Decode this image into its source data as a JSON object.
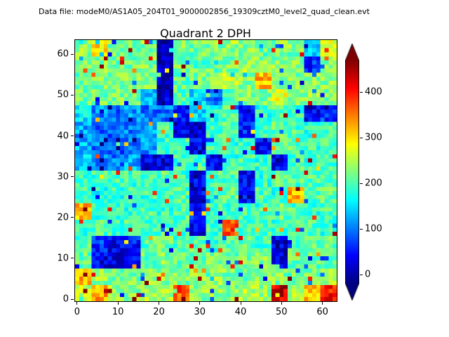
{
  "header": {
    "datafile": "Data file: modeM0/AS1A05_204T01_9000002856_19309cztM0_level2_quad_clean.evt"
  },
  "chart_data": {
    "type": "heatmap",
    "title": "Quadrant 2 DPH",
    "xlabel": "",
    "ylabel": "",
    "x_range": [
      0,
      64
    ],
    "y_range": [
      0,
      64
    ],
    "x_ticks": [
      0,
      10,
      20,
      30,
      40,
      50,
      60
    ],
    "y_ticks": [
      0,
      10,
      20,
      30,
      40,
      50,
      60
    ],
    "grid_size": [
      64,
      64
    ],
    "colormap": "jet",
    "colorbar": {
      "ticks": [
        0,
        100,
        200,
        300,
        400
      ],
      "vmin": -20,
      "vmax": 470,
      "extend": "both",
      "top_arrow_color": "#7f0000",
      "bottom_arrow_color": "#00007f"
    },
    "coarse_grid_note": "16x16 downsampled estimate of the 64x64 detector-plane histogram; rows listed top (y=63) to bottom (y=0); mostly cyan/green ~200 counts, navy features ~15-60, yellow/orange hot spots ~300-450",
    "values_coarse": [
      [
        230,
        300,
        225,
        215,
        225,
        15,
        225,
        215,
        220,
        235,
        225,
        215,
        230,
        225,
        140,
        260
      ],
      [
        220,
        225,
        215,
        220,
        230,
        15,
        220,
        210,
        215,
        225,
        240,
        225,
        230,
        225,
        60,
        230
      ],
      [
        215,
        225,
        220,
        225,
        235,
        15,
        210,
        220,
        230,
        255,
        230,
        320,
        225,
        220,
        225,
        230
      ],
      [
        210,
        220,
        225,
        210,
        130,
        15,
        200,
        150,
        90,
        200,
        225,
        230,
        270,
        225,
        230,
        220
      ],
      [
        150,
        105,
        90,
        115,
        100,
        95,
        45,
        150,
        185,
        200,
        35,
        185,
        200,
        190,
        35,
        65
      ],
      [
        120,
        90,
        85,
        100,
        125,
        195,
        30,
        25,
        190,
        210,
        60,
        190,
        210,
        200,
        185,
        195
      ],
      [
        130,
        100,
        90,
        105,
        110,
        190,
        200,
        30,
        200,
        190,
        190,
        45,
        200,
        210,
        190,
        200
      ],
      [
        140,
        110,
        100,
        120,
        25,
        25,
        190,
        200,
        35,
        190,
        200,
        190,
        35,
        200,
        190,
        195
      ],
      [
        180,
        190,
        200,
        190,
        200,
        205,
        190,
        35,
        200,
        200,
        40,
        190,
        215,
        200,
        205,
        190
      ],
      [
        190,
        170,
        190,
        200,
        190,
        200,
        200,
        30,
        190,
        210,
        45,
        200,
        190,
        320,
        200,
        210
      ],
      [
        320,
        190,
        185,
        190,
        205,
        190,
        200,
        45,
        200,
        190,
        200,
        190,
        210,
        200,
        190,
        200
      ],
      [
        190,
        200,
        190,
        205,
        190,
        200,
        190,
        35,
        190,
        370,
        200,
        205,
        190,
        200,
        205,
        190
      ],
      [
        200,
        65,
        35,
        45,
        205,
        215,
        200,
        210,
        190,
        215,
        210,
        200,
        25,
        210,
        215,
        210
      ],
      [
        210,
        35,
        25,
        60,
        215,
        225,
        210,
        215,
        225,
        210,
        215,
        225,
        25,
        215,
        210,
        215
      ],
      [
        320,
        235,
        225,
        220,
        225,
        235,
        220,
        225,
        235,
        225,
        220,
        235,
        225,
        220,
        225,
        235
      ],
      [
        260,
        330,
        235,
        225,
        245,
        235,
        370,
        225,
        235,
        225,
        245,
        235,
        430,
        245,
        310,
        400
      ]
    ],
    "noise_amplitude": 80,
    "seed": 1234
  }
}
